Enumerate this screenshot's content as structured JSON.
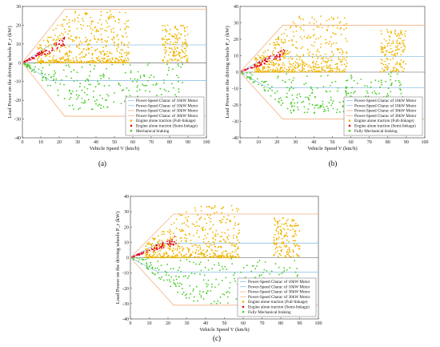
{
  "figure": {
    "panel_labels": [
      "(a)",
      "(b)",
      "(c)"
    ]
  },
  "chart_data": [
    {
      "type": "scatter",
      "panel": "(a)",
      "xlabel": "Vehicle Speed V (km/h)",
      "ylabel": "Load Power on the driving wheels P_r (kW)",
      "xlim": [
        0,
        100
      ],
      "ylim": [
        -40,
        30
      ],
      "xticks": [
        0,
        10,
        20,
        30,
        40,
        50,
        60,
        70,
        80,
        90,
        100
      ],
      "yticks": [
        -40,
        -30,
        -20,
        -10,
        0,
        10,
        20,
        30
      ],
      "grid": false,
      "legend_position": "bottom-right",
      "legend": [
        "Power-Speed Charac of 10kW Motor",
        "Power-Speed Charac of 10kW Motor",
        "Power-Speed Charac of 30kW Motor",
        "Power-Speed Charac of 30kW Motor",
        "Engine alone traction (Full-linkage)",
        "Engine alone traction (Semi-linkage)",
        "Mechanical braking"
      ],
      "motor_curves": {
        "motor_10kW_x": [
          0,
          15,
          100
        ],
        "motor_10kW_y_top": [
          0,
          9.5,
          9.5
        ],
        "motor_10kW_y_bottom": [
          0,
          -9.5,
          -9.5
        ],
        "motor_30kW_x": [
          0,
          23,
          100
        ],
        "motor_30kW_y_top": [
          0,
          28.5,
          28.5
        ],
        "motor_30kW_y_bottom": [
          0,
          -28.5,
          -28.5
        ]
      },
      "series": [
        {
          "name": "Engine alone traction (Full-linkage)",
          "color": "#f0b400",
          "points_estimated": "dense cluster 10–55 km/h, 0–28 kW; cluster 78–90 km/h, 0–20 kW"
        },
        {
          "name": "Engine alone traction (Semi-linkage)",
          "color": "#e8001c",
          "points_estimated": "band along 0–25 km/h, 0–11 kW"
        },
        {
          "name": "Mechanical braking",
          "color": "#44cc22",
          "points_estimated": "negative region 0–90 km/h, 0 to -25 kW"
        }
      ]
    },
    {
      "type": "scatter",
      "panel": "(b)",
      "xlabel": "Vehicle Speed V (km/h)",
      "ylabel": "Load Power on the driving wheels P_r (kW)",
      "xlim": [
        0,
        100
      ],
      "ylim": [
        -40,
        40
      ],
      "xticks": [
        0,
        10,
        20,
        30,
        40,
        50,
        60,
        70,
        80,
        90,
        100
      ],
      "yticks": [
        -40,
        -30,
        -20,
        -10,
        0,
        10,
        20,
        30,
        40
      ],
      "grid": false,
      "legend_position": "bottom-right",
      "legend": [
        "Power-Speed Charac of 10kW Motor",
        "Power-Speed Charac of 10kW Motor",
        "Power-Speed Charac of 30kW Motor",
        "Power-Speed Charac of 30kW Motor",
        "Engine alone traction (Full-linkage)",
        "Engine alone traction (Semi-linkage)",
        "Fully Mechanical braking"
      ],
      "motor_curves": {
        "motor_10kW_x": [
          0,
          15,
          100
        ],
        "motor_10kW_y_top": [
          0,
          9.5,
          9.5
        ],
        "motor_10kW_y_bottom": [
          0,
          -9.5,
          -9.5
        ],
        "motor_30kW_x": [
          0,
          23,
          100
        ],
        "motor_30kW_y_top": [
          0,
          28.5,
          28.5
        ],
        "motor_30kW_y_bottom": [
          0,
          -28.5,
          -28.5
        ]
      }
    },
    {
      "type": "scatter",
      "panel": "(c)",
      "xlabel": "Vehicle Speed V (km/h)",
      "ylabel": "Load Power on the driving wheels P_r (kW)",
      "xlim": [
        0,
        100
      ],
      "ylim": [
        -40,
        40
      ],
      "xticks": [
        0,
        10,
        20,
        30,
        40,
        50,
        60,
        70,
        80,
        90,
        100
      ],
      "yticks": [
        -40,
        -30,
        -20,
        -10,
        0,
        10,
        20,
        30,
        40
      ],
      "grid": false,
      "legend_position": "bottom-right",
      "legend": [
        "Power-Speed Charac of 10kW Motor",
        "Power-Speed Charac of 10kW Motor",
        "Power-Speed Charac of 30kW Motor",
        "Power-Speed Charac of 30kW Motor",
        "Engine alone traction (Full-linkage)",
        "Engine alone traction (Semi-linkage)",
        "Fully Mechanical braking"
      ],
      "motor_curves": {
        "motor_10kW_x": [
          0,
          15,
          100
        ],
        "motor_10kW_y_top": [
          0,
          9.5,
          9.5
        ],
        "motor_10kW_y_bottom": [
          0,
          -9.5,
          -9.5
        ],
        "motor_30kW_x": [
          0,
          23,
          100
        ],
        "motor_30kW_y_top": [
          0,
          28.5,
          28.5
        ],
        "motor_30kW_y_bottom": [
          0,
          -31,
          -31
        ]
      }
    }
  ],
  "colors": {
    "motor10": "#8ec3e6",
    "motor30": "#f4b183",
    "full": "#f0b400",
    "semi": "#e8001c",
    "braking": "#44cc22"
  }
}
